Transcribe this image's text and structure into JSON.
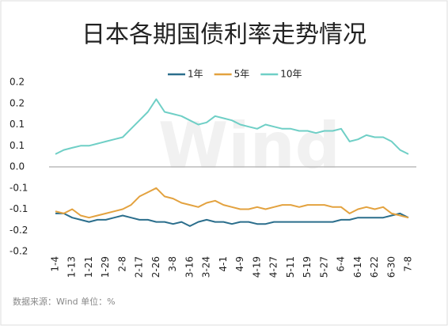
{
  "chart_data": {
    "type": "line",
    "title": "日本各期国债利率走势情况",
    "source": "数据来源：Wind    单位：%",
    "watermark": "Wind",
    "categories": [
      "1-4",
      null,
      "1-13",
      null,
      "1-21",
      null,
      "1-29",
      null,
      "2-8",
      null,
      "2-17",
      null,
      "2-26",
      null,
      "3-8",
      null,
      "3-16",
      null,
      "3-24",
      null,
      "4-1",
      null,
      "4-9",
      null,
      "4-19",
      null,
      "4-27",
      null,
      "5-11",
      null,
      "5-19",
      null,
      "5-27",
      null,
      "6-4",
      null,
      "6-14",
      null,
      "6-22",
      null,
      "6-30",
      null,
      "7-8"
    ],
    "series": [
      {
        "name": "1年",
        "color": "#2b6e8c",
        "values": [
          -0.11,
          -0.11,
          -0.12,
          -0.125,
          -0.13,
          -0.125,
          -0.125,
          -0.12,
          -0.115,
          -0.12,
          -0.125,
          -0.125,
          -0.13,
          -0.13,
          -0.135,
          -0.13,
          -0.14,
          -0.13,
          -0.125,
          -0.13,
          -0.13,
          -0.135,
          -0.13,
          -0.13,
          -0.135,
          -0.135,
          -0.13,
          -0.13,
          -0.13,
          -0.13,
          -0.13,
          -0.13,
          -0.13,
          -0.13,
          -0.125,
          -0.125,
          -0.12,
          -0.12,
          -0.12,
          -0.12,
          -0.115,
          -0.11,
          -0.12
        ]
      },
      {
        "name": "5年",
        "color": "#e3a23f",
        "values": [
          -0.105,
          -0.11,
          -0.1,
          -0.115,
          -0.12,
          -0.115,
          -0.11,
          -0.105,
          -0.1,
          -0.09,
          -0.07,
          -0.06,
          -0.05,
          -0.07,
          -0.075,
          -0.085,
          -0.09,
          -0.095,
          -0.085,
          -0.08,
          -0.09,
          -0.095,
          -0.1,
          -0.1,
          -0.095,
          -0.1,
          -0.095,
          -0.09,
          -0.09,
          -0.095,
          -0.09,
          -0.09,
          -0.09,
          -0.095,
          -0.095,
          -0.11,
          -0.1,
          -0.095,
          -0.1,
          -0.095,
          -0.11,
          -0.115,
          -0.12
        ]
      },
      {
        "name": "10年",
        "color": "#6fcfc6",
        "values": [
          0.03,
          0.04,
          0.045,
          0.05,
          0.05,
          0.055,
          0.06,
          0.065,
          0.07,
          0.09,
          0.11,
          0.13,
          0.16,
          0.13,
          0.125,
          0.12,
          0.11,
          0.1,
          0.105,
          0.12,
          0.115,
          0.11,
          0.1,
          0.095,
          0.09,
          0.1,
          0.095,
          0.09,
          0.09,
          0.085,
          0.085,
          0.08,
          0.085,
          0.085,
          0.09,
          0.06,
          0.065,
          0.075,
          0.07,
          0.07,
          0.06,
          0.04,
          0.03
        ]
      }
    ],
    "ylim": [
      -0.2,
      0.2
    ],
    "yticks": [
      0.2,
      {
        "value": 0.15,
        "label": "0.2"
      },
      0.1,
      {
        "value": 0.05,
        "label": "0.1"
      },
      {
        "value": 0,
        "label": "0.0"
      },
      {
        "value": -0.05,
        "label": "-0.1"
      },
      -0.1,
      {
        "value": -0.15,
        "label": "-0.2"
      },
      -0.2
    ],
    "grid": false,
    "legend": "top"
  }
}
